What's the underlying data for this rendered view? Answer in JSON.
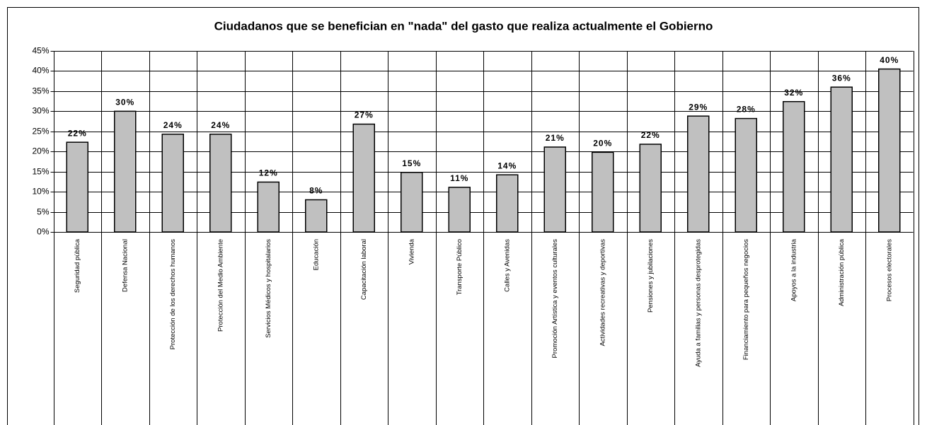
{
  "chart_data": {
    "type": "bar",
    "title": "Ciudadanos  que se benefician en  \"nada\" del gasto que realiza actualmente el Gobierno",
    "categories": [
      "Seguridad pública",
      "Defensa Nacional",
      "Protección de los derechos humanos",
      "Protección del Medio Ambiente",
      "Servicios Médicos y hospitalarios",
      "Educación",
      "Capacitación laboral",
      "Vivienda",
      "Transporte Público",
      "Calles y Avenidas",
      "Promoción Artística y eventos culturales",
      "Actividades recreativas y deportivas",
      "Pensiones y jubilaciones",
      "Ayuda a familias y personas desprotegidas",
      "Financiamiento para pequeños negocios",
      "Apoyos a la industria",
      "Administración pública",
      "Procesos electorales"
    ],
    "values": [
      22.3,
      30,
      24.3,
      24.3,
      12.4,
      8,
      26.8,
      14.8,
      11.1,
      14.2,
      21.1,
      19.8,
      21.8,
      28.8,
      28.2,
      32.4,
      36,
      40.5
    ],
    "value_labels": [
      "22%",
      "30%",
      "24%",
      "24%",
      "12%",
      "8%",
      "27%",
      "15%",
      "11%",
      "14%",
      "21%",
      "20%",
      "22%",
      "29%",
      "28%",
      "32%",
      "36%",
      "40%"
    ],
    "color": "#c0c0c0",
    "ylim": [
      0,
      45
    ],
    "yticks": [
      {
        "value": 0,
        "label": "0%"
      },
      {
        "value": 5,
        "label": "5%"
      },
      {
        "value": 10,
        "label": "10%"
      },
      {
        "value": 15,
        "label": "15%"
      },
      {
        "value": 20,
        "label": "20%"
      },
      {
        "value": 25,
        "label": "25%"
      },
      {
        "value": 30,
        "label": "30%"
      },
      {
        "value": 35,
        "label": "35%"
      },
      {
        "value": 40,
        "label": "40%"
      },
      {
        "value": 45,
        "label": "45%"
      }
    ],
    "grid": true
  }
}
